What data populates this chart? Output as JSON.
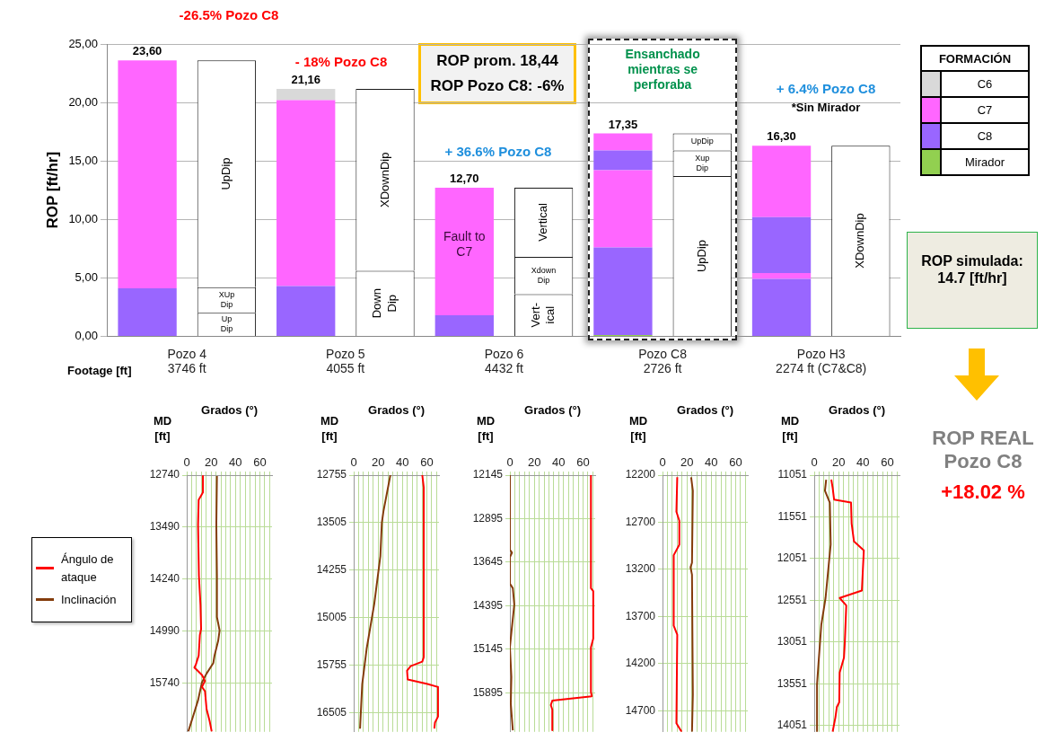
{
  "chart_data": [
    {
      "type": "bar",
      "stacked": true,
      "ylabel": "ROP [ft/hr]",
      "categories": [
        "Pozo 4\n3746 ft",
        null,
        "Pozo 5\n4055 ft",
        null,
        "Pozo 6\n4432 ft",
        null,
        "Pozo C8\n2726 ft",
        null,
        "Pozo H3\n2274 ft (C7&C8)",
        null
      ],
      "ylim": [
        0,
        25
      ],
      "yticks": [
        {
          "value": 0,
          "label": "0,00"
        },
        {
          "value": 5,
          "label": "5,00"
        },
        {
          "value": 10,
          "label": "10,00"
        },
        {
          "value": 15,
          "label": "15,00"
        },
        {
          "value": 20,
          "label": "20,00"
        },
        {
          "value": 25,
          "label": "25,00"
        }
      ],
      "grid": "y",
      "legend": "right",
      "legend_title": "FORMACIÓN",
      "totals": [
        "23,60",
        null,
        "21,16",
        null,
        "12,70",
        null,
        "17,35",
        null,
        "16,30",
        null
      ],
      "annotations": [
        "-26.5% Pozo C8",
        "- 18% Pozo C8",
        "+ 36.6% Pozo C8",
        "Ensanchado mientras se perforaba",
        "+ 6.4% Pozo C8",
        "*Sin Mirador",
        "ROP prom. 18,44",
        "ROP Pozo C8: -6%",
        "ROP simulada: 14.7 [ft/hr]",
        "ROP REAL Pozo C8",
        "+18.02 %",
        "Fault to C7",
        "Footage [ft]"
      ],
      "series": [
        {
          "name": "Mirador",
          "color": "#92d050",
          "values": [
            null,
            null,
            null,
            null,
            null,
            null,
            0.1,
            null,
            null,
            null
          ]
        },
        {
          "name": "C8",
          "color": "#9966ff",
          "values": [
            4.1,
            null,
            4.3,
            null,
            1.8,
            null,
            7.5,
            null,
            4.9,
            null
          ]
        },
        {
          "name": "C7",
          "color": "#ff66ff",
          "values": [
            19.5,
            null,
            15.9,
            null,
            10.9,
            null,
            6.6,
            null,
            0.5,
            null
          ]
        },
        {
          "color": "#9966ff",
          "values": [
            null,
            null,
            null,
            null,
            null,
            null,
            1.7,
            null,
            4.8,
            null
          ]
        },
        {
          "color": "#ff66ff",
          "values": [
            null,
            null,
            null,
            null,
            null,
            null,
            1.45,
            null,
            6.1,
            null
          ]
        },
        {
          "name": "C6",
          "color": "#d9d9d9",
          "values": [
            null,
            null,
            0.96,
            null,
            null,
            null,
            null,
            null,
            null,
            null
          ]
        },
        {
          "color": "#ffffff",
          "values": [
            null,
            2.0,
            null,
            5.6,
            null,
            3.6,
            null,
            13.7,
            null,
            16.3
          ],
          "value_labels": [
            null,
            "Up Dip",
            null,
            "Down Dip",
            null,
            "Vert- ical",
            null,
            "UpDip",
            null,
            "XDownDip"
          ]
        },
        {
          "color": "#ffffff",
          "values": [
            null,
            2.2,
            null,
            15.56,
            null,
            3.2,
            null,
            2.2,
            null,
            null
          ],
          "value_labels": [
            null,
            "XUp Dip",
            null,
            "XDownDip",
            null,
            "Xdown Dip",
            null,
            "Xup Dip",
            null,
            null
          ]
        },
        {
          "color": "#ffffff",
          "values": [
            null,
            19.4,
            null,
            null,
            null,
            5.9,
            null,
            1.45,
            null,
            null
          ],
          "value_labels": [
            null,
            "UpDip",
            null,
            null,
            null,
            "Vertical",
            null,
            "UpDip",
            null,
            null
          ]
        }
      ]
    },
    {
      "type": "line",
      "xlabel": "Grados (°)",
      "ylabel": "MD [ft]",
      "xlim": [
        0,
        70
      ],
      "xticks": [
        0,
        {
          "value": 4,
          "label": null
        },
        {
          "value": 8,
          "label": null
        },
        {
          "value": 12,
          "label": null
        },
        {
          "value": 16,
          "label": null
        },
        20,
        {
          "value": 24,
          "label": null
        },
        {
          "value": 28,
          "label": null
        },
        {
          "value": 32,
          "label": null
        },
        {
          "value": 36,
          "label": null
        },
        40,
        {
          "value": 44,
          "label": null
        },
        {
          "value": 48,
          "label": null
        },
        {
          "value": 52,
          "label": null
        },
        {
          "value": 56,
          "label": null
        },
        60,
        {
          "value": 64,
          "label": null
        },
        {
          "value": 68,
          "label": null
        }
      ],
      "ylim": [
        16445,
        12740
      ],
      "yticks": [
        12740,
        13490,
        14240,
        14990,
        15740
      ],
      "grid": true,
      "legend": "left",
      "series": [
        {
          "name": "Ángulo de ataque",
          "color": "#ff0000",
          "x": [
            13.3,
            13.3,
            9.8,
            9.3,
            10,
            11.3,
            11.8,
            10.8,
            9.8,
            7.5,
            6.3,
            8.8,
            12.5,
            15,
            12.5,
            15,
            16.3,
            18.8,
            20.5
          ],
          "values": [
            12753,
            12989,
            13096,
            13460,
            14189,
            14617,
            14960,
            15046,
            15346,
            15474,
            15517,
            15560,
            15624,
            15710,
            15796,
            15860,
            16117,
            16289,
            16440
          ]
        },
        {
          "name": "Inclinación",
          "color": "#843c0c",
          "x": [
            24.8,
            24.3,
            24.8,
            24.8,
            27,
            25.8,
            22.8,
            21.8,
            16.3,
            12.5,
            9.3,
            6.3,
            1.3
          ],
          "values": [
            12753,
            13460,
            14189,
            14789,
            14982,
            15132,
            15346,
            15453,
            15603,
            15732,
            15989,
            16160,
            16440
          ]
        }
      ]
    },
    {
      "type": "line",
      "xlabel": "Grados (°)",
      "ylabel": "MD [ft]",
      "xlim": [
        0,
        70
      ],
      "xticks": [
        0,
        {
          "value": 4,
          "label": null
        },
        {
          "value": 8,
          "label": null
        },
        {
          "value": 12,
          "label": null
        },
        {
          "value": 16,
          "label": null
        },
        20,
        {
          "value": 24,
          "label": null
        },
        {
          "value": 28,
          "label": null
        },
        {
          "value": 32,
          "label": null
        },
        {
          "value": 36,
          "label": null
        },
        40,
        {
          "value": 44,
          "label": null
        },
        {
          "value": 48,
          "label": null
        },
        {
          "value": 52,
          "label": null
        },
        {
          "value": 56,
          "label": null
        },
        60,
        {
          "value": 64,
          "label": null
        },
        {
          "value": 68,
          "label": null
        }
      ],
      "ylim": [
        16800,
        12755
      ],
      "yticks": [
        12755,
        13505,
        14255,
        15005,
        15755,
        16505
      ],
      "grid": true,
      "series": [
        {
          "color": "#ff0000",
          "x": [
            56.3,
            57.5,
            57.5,
            56.3,
            46.8,
            43.8,
            44.3,
            60.5,
            69.2,
            69.2,
            66.7,
            66.2
          ],
          "values": [
            12755,
            12952,
            15624,
            15694,
            15764,
            15835,
            15975,
            16046,
            16093,
            16561,
            16655,
            16749
          ]
        },
        {
          "color": "#843c0c",
          "x": [
            30.1,
            24.4,
            23.1,
            21.9,
            16.9,
            10.7,
            7.0,
            5.2
          ],
          "values": [
            12755,
            13327,
            13505,
            14030,
            14780,
            15483,
            16046,
            16749
          ]
        }
      ]
    },
    {
      "type": "line",
      "xlabel": "Grados (°)",
      "ylabel": "MD [ft]",
      "xlim": [
        0,
        70
      ],
      "xticks": [
        0,
        {
          "value": 4,
          "label": null
        },
        {
          "value": 8,
          "label": null
        },
        {
          "value": 12,
          "label": null
        },
        {
          "value": 16,
          "label": null
        },
        20,
        {
          "value": 24,
          "label": null
        },
        {
          "value": 28,
          "label": null
        },
        {
          "value": 32,
          "label": null
        },
        {
          "value": 36,
          "label": null
        },
        40,
        {
          "value": 44,
          "label": null
        },
        {
          "value": 48,
          "label": null
        },
        {
          "value": 52,
          "label": null
        },
        {
          "value": 56,
          "label": null
        },
        60,
        {
          "value": 64,
          "label": null
        },
        {
          "value": 68,
          "label": null
        }
      ],
      "ylim": [
        16570,
        12145
      ],
      "yticks": [
        12145,
        12895,
        13645,
        14395,
        15145,
        15895
      ],
      "grid": true,
      "series": [
        {
          "color": "#ff0000",
          "x": [
            66.5,
            66.5,
            68.4,
            68.4,
            66.5,
            66.5,
            67.2,
            34.8,
            33.6,
            34.8,
            34.8
          ],
          "values": [
            12145,
            14094,
            14145,
            14961,
            15114,
            15880,
            15956,
            16033,
            16109,
            16186,
            16543
          ]
        },
        {
          "color": "#843c0c",
          "x": [
            0,
            0,
            1.7,
            0,
            0,
            2.4,
            3.6,
            1.2,
            0,
            1.2,
            0.7,
            2.4
          ],
          "values": [
            12145,
            13431,
            13482,
            13558,
            14017,
            14094,
            14375,
            14859,
            15114,
            15625,
            16084,
            16543
          ]
        }
      ]
    },
    {
      "type": "line",
      "xlabel": "Grados (°)",
      "ylabel": "MD [ft]",
      "xlim": [
        0,
        70
      ],
      "xticks": [
        0,
        {
          "value": 4,
          "label": null
        },
        {
          "value": 8,
          "label": null
        },
        {
          "value": 12,
          "label": null
        },
        {
          "value": 16,
          "label": null
        },
        20,
        {
          "value": 24,
          "label": null
        },
        {
          "value": 28,
          "label": null
        },
        {
          "value": 32,
          "label": null
        },
        {
          "value": 36,
          "label": null
        },
        40,
        {
          "value": 44,
          "label": null
        },
        {
          "value": 48,
          "label": null
        },
        {
          "value": 52,
          "label": null
        },
        {
          "value": 56,
          "label": null
        },
        60,
        {
          "value": 64,
          "label": null
        },
        {
          "value": 68,
          "label": null
        }
      ],
      "ylim": [
        14925,
        12200
      ],
      "yticks": [
        12200,
        12700,
        13200,
        13700,
        14200,
        14700
      ],
      "grid": true,
      "series": [
        {
          "color": "#ff0000",
          "x": [
            12.1,
            11.4,
            13.8,
            13.8,
            9.2,
            9.2,
            12.1,
            11.4,
            15.7
          ],
          "values": [
            12222,
            12589,
            12684,
            12939,
            13050,
            13799,
            13894,
            14834,
            14925
          ]
        },
        {
          "color": "#843c0c",
          "x": [
            23.5,
            24.9,
            24.2,
            23,
            24.2,
            24.9,
            24.2
          ],
          "values": [
            12222,
            12366,
            13130,
            13178,
            13257,
            14531,
            14925
          ]
        }
      ]
    },
    {
      "type": "line",
      "xlabel": "Grados (°)",
      "ylabel": "MD [ft]",
      "xlim": [
        0,
        70
      ],
      "xticks": [
        0,
        {
          "value": 4,
          "label": null
        },
        {
          "value": 8,
          "label": null
        },
        {
          "value": 12,
          "label": null
        },
        {
          "value": 16,
          "label": null
        },
        20,
        {
          "value": 24,
          "label": null
        },
        {
          "value": 28,
          "label": null
        },
        {
          "value": 32,
          "label": null
        },
        {
          "value": 36,
          "label": null
        },
        40,
        {
          "value": 44,
          "label": null
        },
        {
          "value": 48,
          "label": null
        },
        {
          "value": 52,
          "label": null
        },
        {
          "value": 56,
          "label": null
        },
        60,
        {
          "value": 64,
          "label": null
        },
        {
          "value": 68,
          "label": null
        }
      ],
      "ylim": [
        14125,
        11051
      ],
      "yticks": [
        11051,
        11551,
        12051,
        12551,
        13051,
        13551,
        14051
      ],
      "grid": true,
      "series": [
        {
          "color": "#ff0000",
          "x": [
            14,
            15.1,
            16.3,
            30.2,
            30.7,
            32.6,
            40.7,
            39.1,
            20.9,
            26.3,
            25.1,
            24.4,
            20.9,
            20.5,
            18.6,
            17.4,
            15.1
          ],
          "values": [
            11105,
            11201,
            11344,
            11380,
            11630,
            11844,
            11951,
            12433,
            12522,
            12612,
            13058,
            13237,
            13415,
            13772,
            13826,
            13951,
            14125
          ]
        },
        {
          "color": "#843c0c",
          "x": [
            9.8,
            8.8,
            12.8,
            13.5,
            9.3,
            5.8,
            3.5,
            2.3,
            2.3
          ],
          "values": [
            11105,
            11237,
            11380,
            11880,
            12522,
            12844,
            13308,
            13558,
            14125
          ]
        }
      ]
    }
  ]
}
